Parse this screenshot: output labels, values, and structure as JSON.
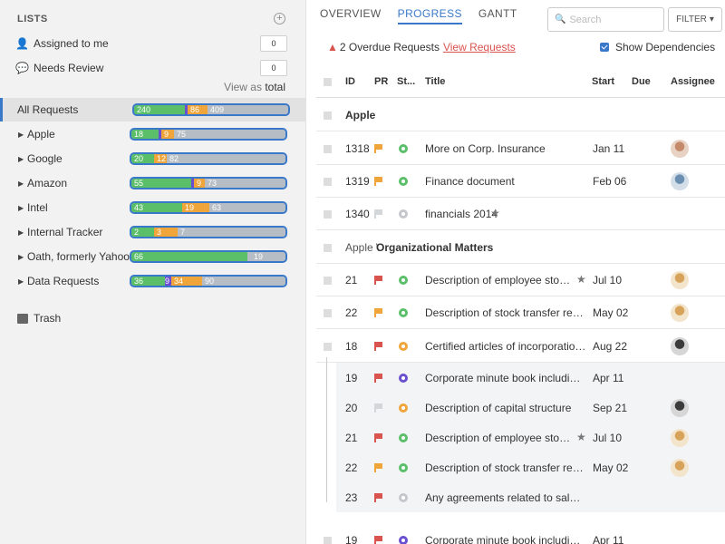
{
  "sidebar": {
    "header": "LISTS",
    "filters": [
      {
        "label": "Assigned to me",
        "count": "0"
      },
      {
        "label": "Needs Review",
        "count": "0"
      }
    ],
    "view_as_prefix": "View as",
    "view_as_value": "total",
    "lists": [
      {
        "name": "All Requests",
        "active": true,
        "segments": [
          {
            "c": "g",
            "v": "240"
          },
          {
            "c": "p",
            "v": ""
          },
          {
            "c": "o",
            "v": "86"
          },
          {
            "c": "r",
            "v": "409"
          }
        ]
      },
      {
        "name": "Apple",
        "segments": [
          {
            "c": "g",
            "v": "18"
          },
          {
            "c": "p",
            "v": ""
          },
          {
            "c": "o",
            "v": "9"
          },
          {
            "c": "r",
            "v": "75"
          }
        ]
      },
      {
        "name": "Google",
        "segments": [
          {
            "c": "g",
            "v": "20"
          },
          {
            "c": "o",
            "v": "12"
          },
          {
            "c": "r",
            "v": "82"
          }
        ]
      },
      {
        "name": "Amazon",
        "segments": [
          {
            "c": "g",
            "v": "55"
          },
          {
            "c": "p",
            "v": ""
          },
          {
            "c": "o",
            "v": "9"
          },
          {
            "c": "r",
            "v": "73"
          }
        ]
      },
      {
        "name": "Intel",
        "segments": [
          {
            "c": "g",
            "v": "43"
          },
          {
            "c": "o",
            "v": "19"
          },
          {
            "c": "r",
            "v": "63"
          }
        ]
      },
      {
        "name": "Internal Tracker",
        "segments": [
          {
            "c": "g",
            "v": "2"
          },
          {
            "c": "o",
            "v": "3"
          },
          {
            "c": "r",
            "v": "7"
          }
        ]
      },
      {
        "name": "Oath, formerly Yahoo",
        "segments": [
          {
            "c": "g",
            "v": "66"
          },
          {
            "c": "r",
            "v": "19"
          }
        ]
      },
      {
        "name": "Data Requests",
        "segments": [
          {
            "c": "g",
            "v": "36"
          },
          {
            "c": "p",
            "v": "9"
          },
          {
            "c": "o",
            "v": "34"
          },
          {
            "c": "r",
            "v": "90"
          }
        ]
      }
    ],
    "trash_label": "Trash"
  },
  "tabs": [
    {
      "label": "OVERVIEW",
      "active": false
    },
    {
      "label": "PROGRESS",
      "active": true
    },
    {
      "label": "GANTT",
      "active": false
    }
  ],
  "search": {
    "placeholder": "Search"
  },
  "filter_label": "FILTER",
  "alert": {
    "text": "2 Overdue Requests",
    "link": "View Requests"
  },
  "show_deps_label": "Show Dependencies",
  "columns": {
    "id": "ID",
    "pr": "PR",
    "st": "St...",
    "title": "Title",
    "start": "Start",
    "due": "Due",
    "assignee": "Assignee"
  },
  "rows": [
    {
      "type": "group",
      "title": "Apple"
    },
    {
      "id": "1318",
      "flag": "orange",
      "status": "green",
      "title": "More on Corp. Insurance",
      "start": "Jan 11",
      "avatar": "a1"
    },
    {
      "id": "1319",
      "flag": "orange",
      "status": "green",
      "title": "Finance document",
      "start": "Feb 06",
      "avatar": "a2"
    },
    {
      "id": "1340",
      "flag": "gray",
      "status": "gray",
      "title": "financials 2014",
      "starred": true,
      "start": "",
      "avatar": ""
    },
    {
      "type": "group",
      "prefix": "Apple \\",
      "title": "Organizational Matters"
    },
    {
      "id": "21",
      "flag": "red",
      "status": "green",
      "title": "Description of employee stock o...",
      "starred": true,
      "start": "Jul 10",
      "avatar": "a3"
    },
    {
      "id": "22",
      "flag": "orange",
      "status": "green",
      "title": "Description of stock transfer restric...",
      "start": "May 02",
      "avatar": "a3"
    },
    {
      "id": "18",
      "flag": "red",
      "status": "orange",
      "title": "Certified articles of incorporation a...",
      "start": "Aug 22",
      "avatar": "a4"
    },
    {
      "id": "19",
      "flag": "red",
      "status": "purple",
      "title": "Corporate minute book including st...",
      "start": "Apr 11",
      "avatar": "",
      "sub": true
    },
    {
      "id": "20",
      "flag": "gray",
      "status": "orange",
      "title": "Description of capital structure",
      "start": "Sep 21",
      "avatar": "a4",
      "sub": true
    },
    {
      "id": "21",
      "flag": "red",
      "status": "green",
      "title": "Description of employee stock o...",
      "starred": true,
      "start": "Jul 10",
      "avatar": "a3",
      "sub": true
    },
    {
      "id": "22",
      "flag": "orange",
      "status": "green",
      "title": "Description of stock transfer restric...",
      "start": "May 02",
      "avatar": "a3",
      "sub": true
    },
    {
      "id": "23",
      "flag": "red",
      "status": "gray",
      "title": "Any agreements related to sale, ple...",
      "start": "",
      "avatar": "",
      "sub": true
    },
    {
      "id": "19",
      "flag": "red",
      "status": "purple",
      "title": "Corporate minute book including st...",
      "start": "Apr 11",
      "avatar": ""
    }
  ],
  "colors": {
    "accent": "#3a78c9",
    "green": "#5bbf6a",
    "orange": "#f0a53a",
    "purple": "#6a4fd0",
    "red": "#d9534f",
    "gray": "#c4c8cc"
  }
}
